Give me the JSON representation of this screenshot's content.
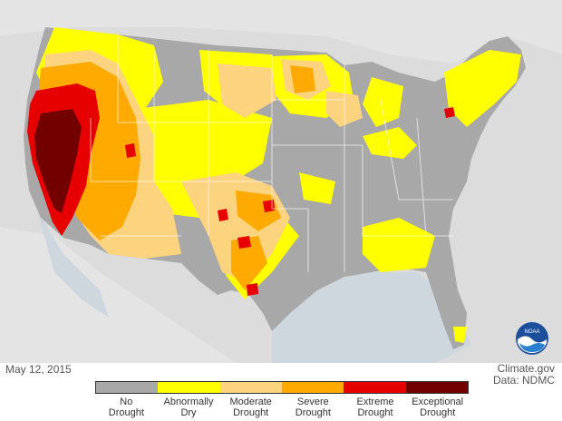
{
  "map": {
    "date": "May 12, 2015",
    "credit_line1": "Climate.gov",
    "credit_line2": "Data: NDMC",
    "logo_text": "NOAA",
    "colors": {
      "background": "#d8d8d8",
      "land_outside": "#e6e6e6",
      "water": "#c8d3dc",
      "state_lines": "#ffffff"
    }
  },
  "legend": {
    "items": [
      {
        "line1": "No",
        "line2": "Drought",
        "color": "#a8a8a8"
      },
      {
        "line1": "Abnormally",
        "line2": "Dry",
        "color": "#ffff00"
      },
      {
        "line1": "Moderate",
        "line2": "Drought",
        "color": "#fcd37f"
      },
      {
        "line1": "Severe",
        "line2": "Drought",
        "color": "#ffaa00"
      },
      {
        "line1": "Extreme",
        "line2": "Drought",
        "color": "#e60000"
      },
      {
        "line1": "Exceptional",
        "line2": "Drought",
        "color": "#730000"
      }
    ]
  }
}
